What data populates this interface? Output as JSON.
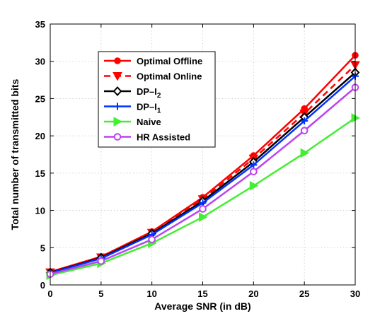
{
  "chart_data": {
    "type": "line",
    "xlabel": "Average SNR (in dB)",
    "ylabel": "Total number of transmitted bits",
    "x": [
      0,
      5,
      10,
      15,
      20,
      25,
      30
    ],
    "xlim": [
      0,
      30
    ],
    "ylim": [
      0,
      35
    ],
    "xticks": [
      0,
      5,
      10,
      15,
      20,
      25,
      30
    ],
    "yticks": [
      0,
      5,
      10,
      15,
      20,
      25,
      30,
      35
    ],
    "grid": true,
    "legend_position": "upper-left",
    "series": [
      {
        "name": "Optimal Offline",
        "name_sub": "",
        "color": "#ff0000",
        "marker": "circle-filled",
        "dash": "solid",
        "values": [
          1.75,
          3.8,
          7.15,
          11.75,
          17.35,
          23.65,
          30.8
        ]
      },
      {
        "name": "Optimal Online",
        "name_sub": "",
        "color": "#ff0000",
        "marker": "triangle-down-filled",
        "dash": "dashed",
        "values": [
          1.7,
          3.7,
          7.0,
          11.5,
          16.95,
          23.0,
          29.5
        ]
      },
      {
        "name": "DP–I",
        "name_sub": "2",
        "color": "#000000",
        "marker": "diamond-open",
        "dash": "solid",
        "values": [
          1.65,
          3.65,
          6.9,
          11.25,
          16.5,
          22.5,
          28.5
        ]
      },
      {
        "name": "DP–I",
        "name_sub": "1",
        "color": "#0033ff",
        "marker": "plus",
        "dash": "solid",
        "values": [
          1.6,
          3.55,
          6.75,
          11.0,
          16.1,
          22.0,
          28.0
        ]
      },
      {
        "name": "Naive",
        "name_sub": "",
        "color": "#44ee33",
        "marker": "triangle-right-filled",
        "dash": "solid",
        "values": [
          1.3,
          2.9,
          5.6,
          9.1,
          13.3,
          17.7,
          22.4
        ]
      },
      {
        "name": "HR Assisted",
        "name_sub": "",
        "color": "#bb44ee",
        "marker": "circle-open",
        "dash": "solid",
        "values": [
          1.45,
          3.2,
          6.1,
          10.2,
          15.2,
          20.7,
          26.5
        ]
      }
    ]
  }
}
